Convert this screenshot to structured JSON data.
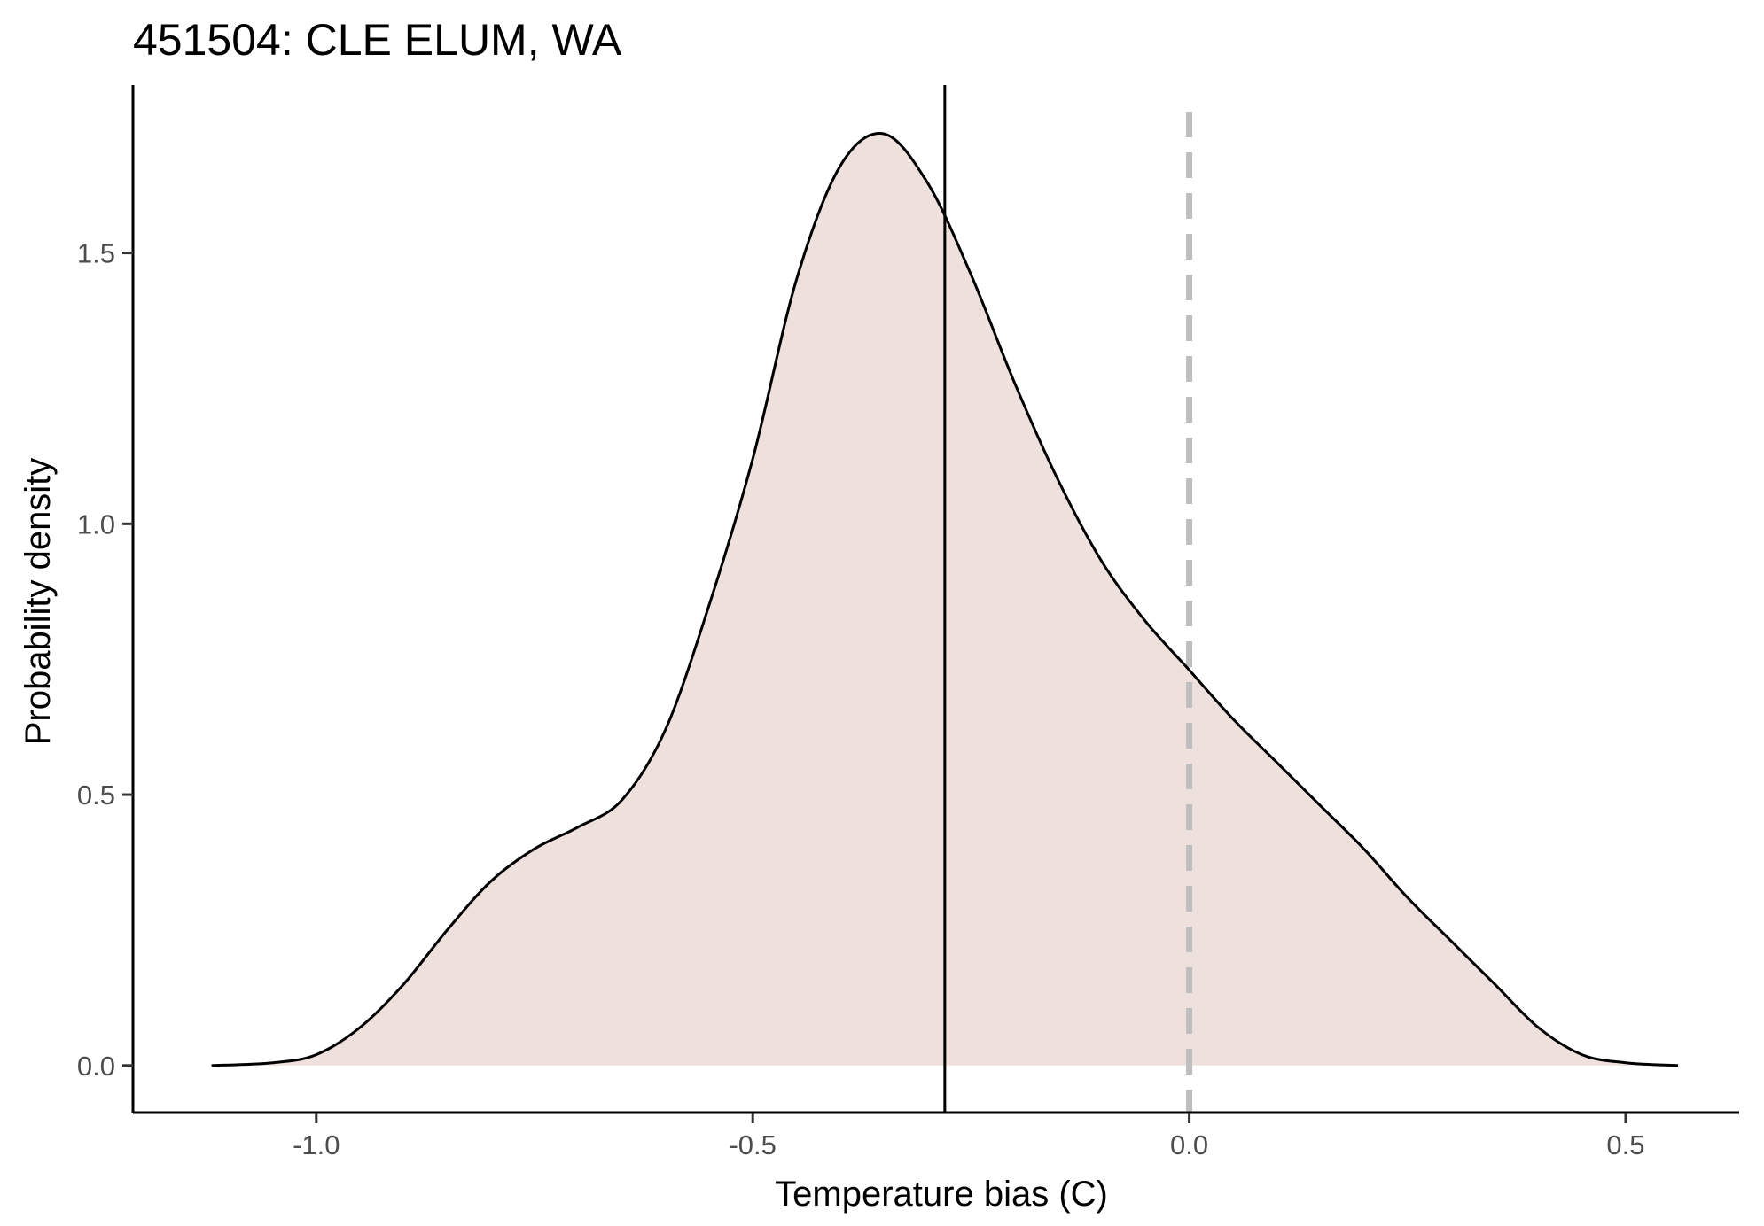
{
  "chart_data": {
    "type": "area",
    "title": "451504: CLE ELUM, WA",
    "xlabel": "Temperature bias (C)",
    "ylabel": "Probability density",
    "xlim": [
      -1.21,
      0.63
    ],
    "ylim": [
      -0.087,
      1.81
    ],
    "x_ticks": [
      "-1.0",
      "-0.5",
      "0.0",
      "0.5"
    ],
    "y_ticks": [
      "0.0",
      "0.5",
      "1.0",
      "1.5"
    ],
    "grid": false,
    "fill_color": "#ede0dd",
    "curve_color": "#000000",
    "mean_line": {
      "x": -0.28,
      "color": "#000000",
      "style": "solid"
    },
    "zero_line": {
      "x": 0.0,
      "color": "#bebebe",
      "style": "dashed"
    },
    "series": [
      {
        "x": [
          -1.12,
          -1.05,
          -1.0,
          -0.95,
          -0.9,
          -0.85,
          -0.8,
          -0.75,
          -0.7,
          -0.65,
          -0.6,
          -0.55,
          -0.5,
          -0.45,
          -0.4,
          -0.35,
          -0.3,
          -0.25,
          -0.2,
          -0.15,
          -0.1,
          -0.05,
          0.0,
          0.05,
          0.1,
          0.15,
          0.2,
          0.25,
          0.3,
          0.35,
          0.4,
          0.45,
          0.5,
          0.56
        ],
        "y": [
          0.0,
          0.005,
          0.02,
          0.07,
          0.15,
          0.25,
          0.34,
          0.4,
          0.44,
          0.49,
          0.62,
          0.85,
          1.12,
          1.45,
          1.66,
          1.72,
          1.63,
          1.46,
          1.26,
          1.08,
          0.93,
          0.82,
          0.73,
          0.64,
          0.56,
          0.48,
          0.4,
          0.31,
          0.23,
          0.15,
          0.07,
          0.02,
          0.005,
          0.0
        ]
      }
    ]
  }
}
